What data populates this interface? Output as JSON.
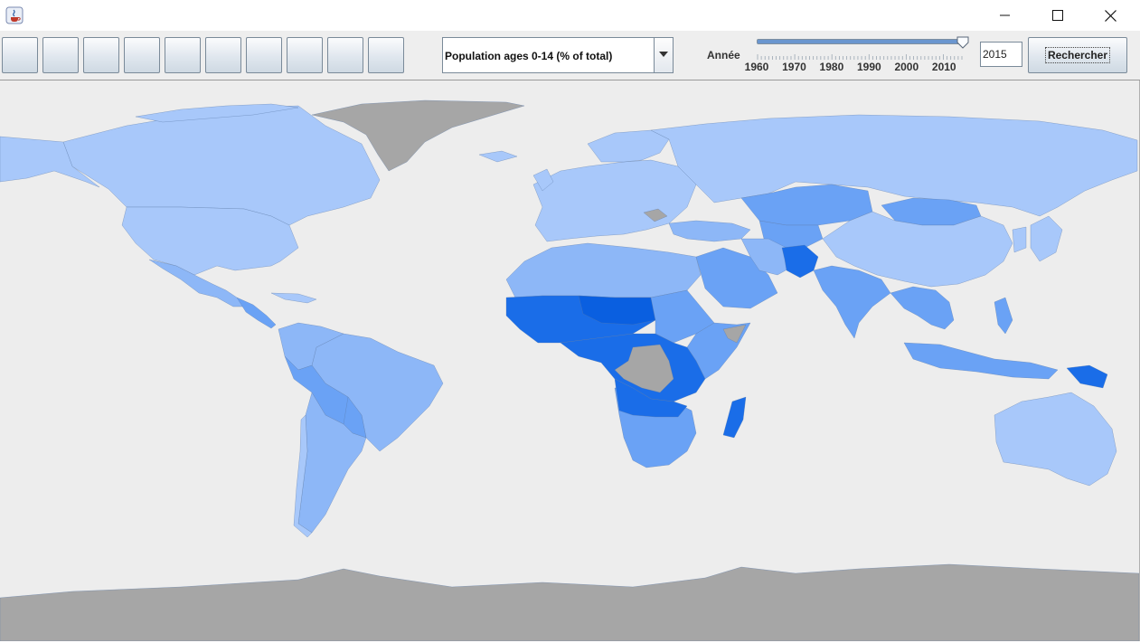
{
  "toolbar": {
    "tool_buttons": [
      "",
      "",
      "",
      "",
      "",
      "",
      "",
      "",
      "",
      ""
    ],
    "indicator_selected": "Population ages 0-14 (% of total)",
    "year_label": "Année",
    "year_ticks": [
      "1960",
      "1970",
      "1980",
      "1990",
      "2000",
      "2010"
    ],
    "year_slider_value": 2015,
    "year_range": [
      1960,
      2015
    ],
    "year_input_value": "2015",
    "search_button_label": "Rechercher"
  },
  "window": {
    "controls": [
      "minimize",
      "maximize",
      "close"
    ]
  },
  "map": {
    "colors": {
      "background": "#ededed",
      "no_data": "#a6a6a6",
      "low": "#a8c8fa",
      "mid_low": "#8db7f7",
      "mid": "#6aa2f5",
      "mid_high": "#4188f0",
      "high": "#1a6de8",
      "highest": "#0a5fe0"
    }
  }
}
